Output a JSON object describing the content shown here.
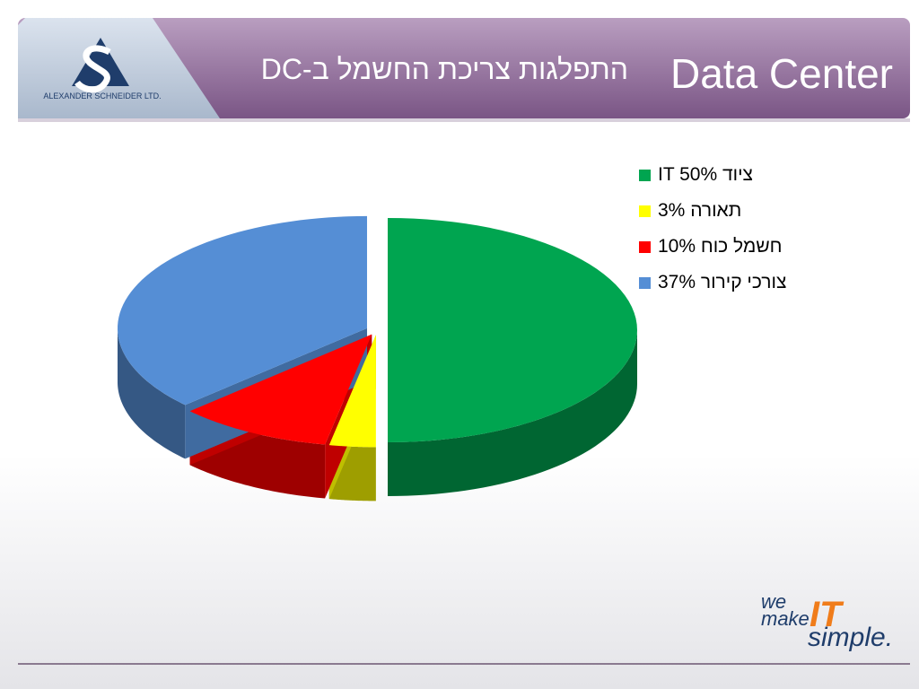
{
  "chart_data": {
    "type": "pie",
    "title": "Data Center",
    "subtitle": "התפלגות צריכת החשמל ב-DC",
    "categories": [
      "ציוד IT 50%",
      "תאורה 3%",
      "חשמל כוח 10%",
      "צורכי קירור 37%"
    ],
    "values": [
      50,
      3,
      10,
      37
    ],
    "colors": [
      "#00a550",
      "#ffff00",
      "#ff0000",
      "#558ed5"
    ],
    "legend": "right"
  },
  "branding": {
    "company": "ALEXANDER SCHNEIDER LTD.",
    "slogan": [
      "we",
      "make",
      "IT",
      "simple."
    ]
  }
}
